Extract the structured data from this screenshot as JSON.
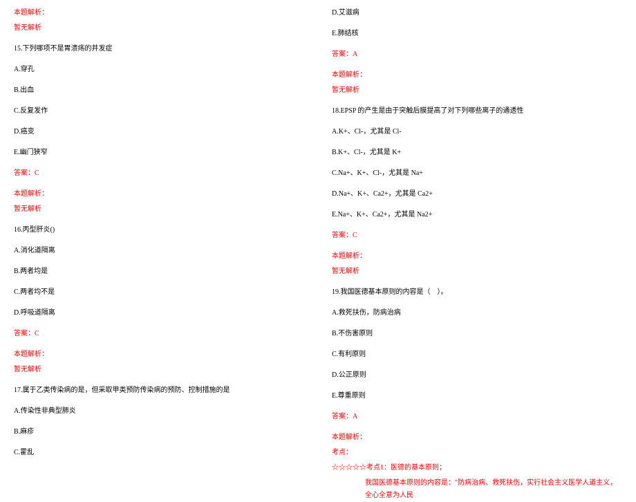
{
  "colors": {
    "red": "#ff0000",
    "black": "#000000",
    "bg": "#ffffff"
  },
  "left": {
    "analysis_label": "本题解析：",
    "no_analysis": "暂无解析",
    "q15": {
      "stem": "15.下列哪项不是胃溃疡的并发症",
      "a": "A.穿孔",
      "b": "B.出血",
      "c": "C.反复发作",
      "d": "D.癌变",
      "e": "E.幽门狭窄",
      "answer": "答案：C"
    },
    "q16": {
      "stem": "16.丙型肝炎()",
      "a": "A.消化道隔离",
      "b": "B.两者均是",
      "c": "C.两者均不是",
      "d": "D.呼吸道隔离",
      "answer": "答案：C"
    },
    "q17": {
      "stem": "17.属于乙类传染病的是，但采取甲类预防传染病的预防、控制措施的是",
      "a": "A.传染性非典型肺炎",
      "b": "B.麻疹",
      "c": "C.霍乱"
    }
  },
  "right": {
    "q17cont": {
      "d": "D.艾滋病",
      "e": "E.肺结核",
      "answer": "答案：A"
    },
    "analysis_label": "本题解析：",
    "no_analysis": "暂无解析",
    "q18": {
      "stem": "18.EPSP 的产生是由于突触后膜提高了对下列哪些离子的通透性",
      "a": "A.K+、Cl-，尤其是 Cl-",
      "b": "B.K+、Cl-，尤其是 K+",
      "c": "C.Na+、K+、Cl-，尤其是 Na+",
      "d": "D.Na+、K+、Ca2+，尤其是 Ca2+",
      "e": "E.Na+、K+、Ca2+，尤其是 Na2+",
      "answer": "答案：C"
    },
    "q19": {
      "stem": "19.我国医德基本原则的内容是（　）。",
      "a": "A.救死扶伤，防病治病",
      "b": "B.不伤害原则",
      "c": "C.有利原则",
      "d": "D.公正原则",
      "e": "E.尊重原则",
      "answer": "答案：A",
      "analysis_label": "本题解析：",
      "kdian": "考点：",
      "stars_line": "☆☆☆☆☆考点1：医德的基本原则；",
      "content_line": "我国医德基本原则的内容是：\"防病治病、救死扶伤，实行社会主义医学人道主义，全心全意为人民"
    }
  }
}
